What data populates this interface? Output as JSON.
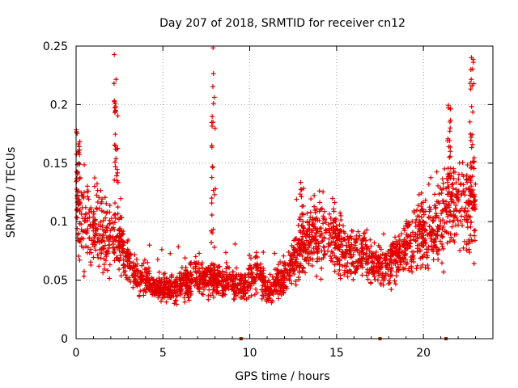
{
  "chart_data": {
    "type": "scatter",
    "title": "Day 207 of 2018, SRMTID for receiver cn12",
    "xlabel": "GPS time / hours",
    "ylabel": "SRMTID / TECUs",
    "xlim": [
      0,
      24
    ],
    "ylim": [
      0,
      0.25
    ],
    "xticks": [
      0,
      5,
      10,
      15,
      20
    ],
    "yticks": [
      0,
      0.05,
      0.1,
      0.15,
      0.2,
      0.25
    ],
    "xtick_labels": [
      "0",
      "5",
      "10",
      "15",
      "20"
    ],
    "ytick_labels": [
      "0",
      "0.05",
      "0.1",
      "0.15",
      "0.2",
      "0.25"
    ],
    "grid": true,
    "marker": "+",
    "color": "#e00000",
    "point_count": 2400,
    "series_description": "dense scatter; median trend values per hour given below (hour:value)",
    "trend": [
      [
        0,
        0.11
      ],
      [
        0.5,
        0.1
      ],
      [
        1,
        0.095
      ],
      [
        1.5,
        0.09
      ],
      [
        2,
        0.085
      ],
      [
        2.5,
        0.085
      ],
      [
        3,
        0.065
      ],
      [
        3.5,
        0.055
      ],
      [
        4,
        0.05
      ],
      [
        4.5,
        0.045
      ],
      [
        5,
        0.043
      ],
      [
        5.5,
        0.042
      ],
      [
        6,
        0.045
      ],
      [
        6.5,
        0.05
      ],
      [
        7,
        0.055
      ],
      [
        7.5,
        0.05
      ],
      [
        8,
        0.048
      ],
      [
        8.5,
        0.05
      ],
      [
        9,
        0.048
      ],
      [
        9.5,
        0.045
      ],
      [
        10,
        0.05
      ],
      [
        10.5,
        0.06
      ],
      [
        11,
        0.04
      ],
      [
        11.5,
        0.045
      ],
      [
        12,
        0.055
      ],
      [
        12.5,
        0.065
      ],
      [
        13,
        0.075
      ],
      [
        13.5,
        0.085
      ],
      [
        14,
        0.09
      ],
      [
        14.5,
        0.09
      ],
      [
        15,
        0.085
      ],
      [
        15.5,
        0.075
      ],
      [
        16,
        0.07
      ],
      [
        16.5,
        0.07
      ],
      [
        17,
        0.065
      ],
      [
        17.5,
        0.06
      ],
      [
        18,
        0.065
      ],
      [
        18.5,
        0.07
      ],
      [
        19,
        0.08
      ],
      [
        19.5,
        0.085
      ],
      [
        20,
        0.09
      ],
      [
        20.5,
        0.095
      ],
      [
        21,
        0.1
      ],
      [
        21.5,
        0.11
      ],
      [
        22,
        0.115
      ],
      [
        22.5,
        0.11
      ],
      [
        23,
        0.12
      ]
    ],
    "bursts": [
      {
        "x": 0.1,
        "ymax": 0.18
      },
      {
        "x": 2.3,
        "ymax": 0.245
      },
      {
        "x": 7.9,
        "ymax": 0.25
      },
      {
        "x": 13,
        "ymax": 0.14
      },
      {
        "x": 21.5,
        "ymax": 0.2
      },
      {
        "x": 22.8,
        "ymax": 0.245
      }
    ],
    "axis_markers": [
      9.5,
      17.5,
      21.3
    ]
  }
}
